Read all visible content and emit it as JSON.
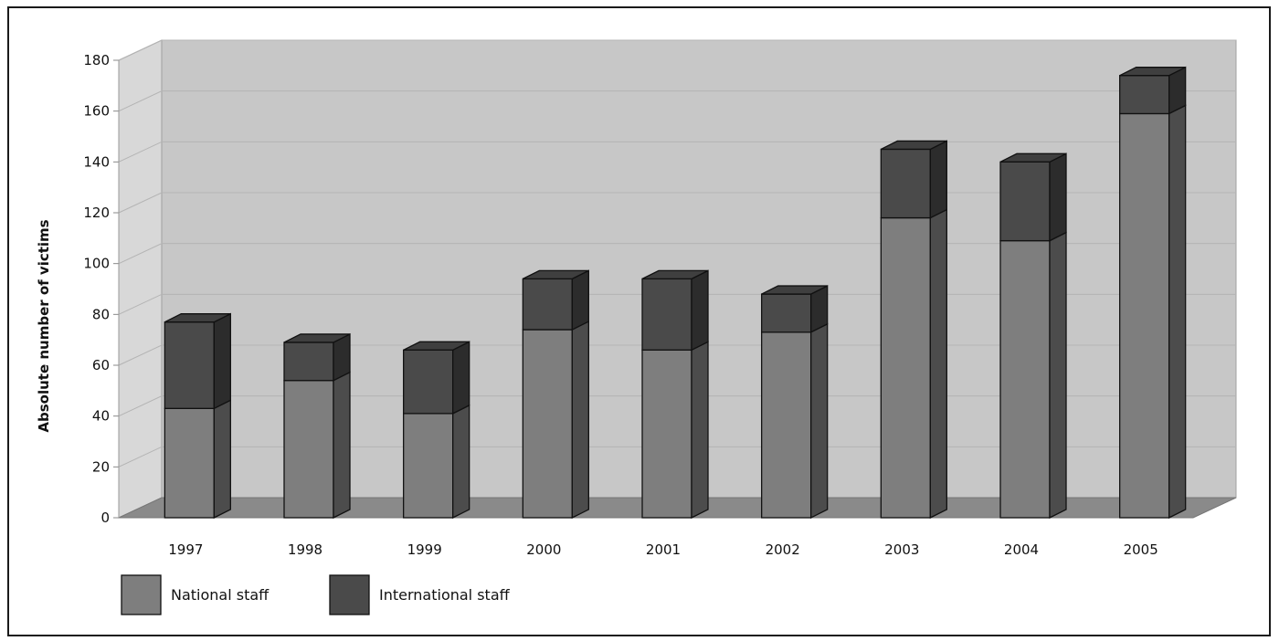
{
  "chart_data": {
    "type": "bar",
    "stacked": true,
    "style": "3d",
    "title": "",
    "xlabel": "",
    "ylabel": "Absolute number of victims",
    "ylim": [
      0,
      180
    ],
    "yticks": [
      0,
      20,
      40,
      60,
      80,
      100,
      120,
      140,
      160,
      180
    ],
    "grid": true,
    "legend_position": "bottom-left",
    "categories": [
      "1997",
      "1998",
      "1999",
      "2000",
      "2001",
      "2002",
      "2003",
      "2004",
      "2005"
    ],
    "series": [
      {
        "name": "National staff",
        "color": "#7e7e7e",
        "values": [
          43,
          54,
          41,
          74,
          66,
          73,
          118,
          109,
          159
        ]
      },
      {
        "name": "International staff",
        "color": "#4a4a4a",
        "values": [
          34,
          15,
          25,
          20,
          28,
          15,
          27,
          31,
          15
        ]
      }
    ]
  }
}
